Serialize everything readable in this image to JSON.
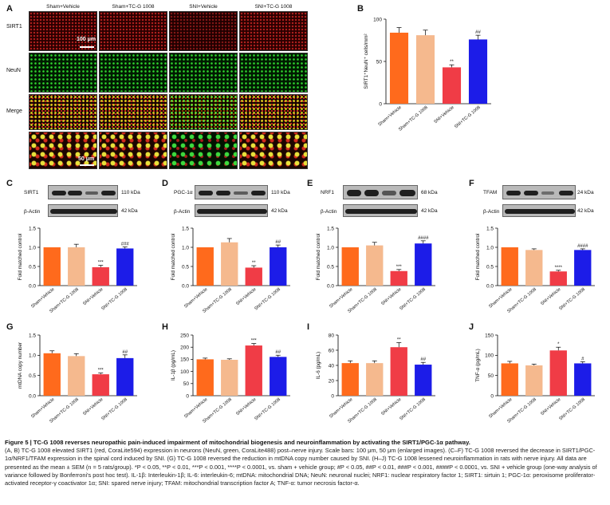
{
  "panel_letters": {
    "A": "A",
    "B": "B",
    "C": "C",
    "D": "D",
    "E": "E",
    "F": "F",
    "G": "G",
    "H": "H",
    "I": "I",
    "J": "J"
  },
  "panel_a": {
    "groups": [
      "Sham+Vehicle",
      "Sham+TC-G 1008",
      "SNI+Vehicle",
      "SNI+TC-G 1008"
    ],
    "rows": [
      "SIRT1",
      "NeuN",
      "Merge"
    ],
    "scale_top": "100 μm",
    "scale_bottom": "50 μm"
  },
  "groups_short": [
    "Sham+Vehicle",
    "Sham+TC-G 1008",
    "SNI+Vehicle",
    "SNI+TC-G 1008"
  ],
  "bar_colors": [
    "#ff6a1c",
    "#f5b98e",
    "#f03c46",
    "#1c1ce8"
  ],
  "blots": {
    "C": {
      "target": "SIRT1",
      "target_kda": "110 kDa",
      "ref": "β-Actin",
      "ref_kda": "42 kDa"
    },
    "D": {
      "target": "PGC-1α",
      "target_kda": "110 kDa",
      "ref": "β-Actin",
      "ref_kda": "42 kDa"
    },
    "E": {
      "target": "NRF1",
      "target_kda": "68 kDa",
      "ref": "β-Actin",
      "ref_kda": "42 kDa"
    },
    "F": {
      "target": "TFAM",
      "target_kda": "24 kDa",
      "ref": "β-Actin",
      "ref_kda": "42 kDa"
    }
  },
  "chart_data": [
    {
      "panel": "B",
      "type": "bar",
      "ylabel": "SIRT1⁺NeuN⁺ cells/mm²",
      "ylim": [
        0,
        100
      ],
      "yticks": [
        0,
        50,
        100
      ],
      "categories": [
        "Sham+Vehicle",
        "Sham+TC-G 1008",
        "SNI+Vehicle",
        "SNI+TC-G 1008"
      ],
      "values": [
        84,
        81,
        43,
        76
      ],
      "errors": [
        6,
        6,
        3,
        5
      ],
      "annotations": [
        "",
        "",
        "**",
        "##"
      ]
    },
    {
      "panel": "C",
      "type": "bar",
      "ylabel": "Fold matched control",
      "ylim": [
        0,
        1.5
      ],
      "yticks": [
        0.0,
        0.5,
        1.0,
        1.5
      ],
      "categories": [
        "Sham+Vehicle",
        "Sham+TC-G 1008",
        "SNI+Vehicle",
        "SNI+TC-G 1008"
      ],
      "values": [
        1.0,
        1.0,
        0.48,
        0.97
      ],
      "errors": [
        0,
        0.08,
        0.05,
        0.04
      ],
      "annotations": [
        "",
        "",
        "***",
        "###"
      ]
    },
    {
      "panel": "D",
      "type": "bar",
      "ylabel": "Fold matched control",
      "ylim": [
        0,
        1.5
      ],
      "yticks": [
        0.0,
        0.5,
        1.0,
        1.5
      ],
      "categories": [
        "Sham+Vehicle",
        "Sham+TC-G 1008",
        "SNI+Vehicle",
        "SNI+TC-G 1008"
      ],
      "values": [
        1.0,
        1.13,
        0.47,
        1.0
      ],
      "errors": [
        0,
        0.1,
        0.05,
        0.06
      ],
      "annotations": [
        "",
        "",
        "**",
        "##"
      ]
    },
    {
      "panel": "E",
      "type": "bar",
      "ylabel": "Fold matched control",
      "ylim": [
        0,
        1.5
      ],
      "yticks": [
        0.0,
        0.5,
        1.0,
        1.5
      ],
      "categories": [
        "Sham+Vehicle",
        "Sham+TC-G 1008",
        "SNI+Vehicle",
        "SNI+TC-G 1008"
      ],
      "values": [
        1.0,
        1.05,
        0.38,
        1.1
      ],
      "errors": [
        0,
        0.08,
        0.04,
        0.07
      ],
      "annotations": [
        "",
        "",
        "***",
        "####"
      ]
    },
    {
      "panel": "F",
      "type": "bar",
      "ylabel": "Fold matched control",
      "ylim": [
        0,
        1.5
      ],
      "yticks": [
        0.0,
        0.5,
        1.0,
        1.5
      ],
      "categories": [
        "Sham+Vehicle",
        "Sham+TC-G 1008",
        "SNI+Vehicle",
        "SNI+TC-G 1008"
      ],
      "values": [
        1.0,
        0.93,
        0.37,
        0.93
      ],
      "errors": [
        0,
        0.03,
        0.03,
        0.03
      ],
      "annotations": [
        "",
        "",
        "****",
        "####"
      ]
    },
    {
      "panel": "G",
      "type": "bar",
      "ylabel": "mtDNA copy number",
      "ylim": [
        0,
        1.5
      ],
      "yticks": [
        0.0,
        0.5,
        1.0,
        1.5
      ],
      "categories": [
        "Sham+Vehicle",
        "Sham+TC-G 1008",
        "SNI+Vehicle",
        "SNI+TC-G 1008"
      ],
      "values": [
        1.05,
        0.98,
        0.53,
        0.93
      ],
      "errors": [
        0.06,
        0.06,
        0.03,
        0.08
      ],
      "annotations": [
        "",
        "",
        "***",
        "##"
      ]
    },
    {
      "panel": "H",
      "type": "bar",
      "ylabel": "IL-1β (pg/mL)",
      "ylim": [
        0,
        250
      ],
      "yticks": [
        0,
        50,
        100,
        150,
        200,
        250
      ],
      "categories": [
        "Sham+Vehicle",
        "Sham+TC-G 1008",
        "SNI+Vehicle",
        "SNI+TC-G 1008"
      ],
      "values": [
        150,
        148,
        207,
        160
      ],
      "errors": [
        5,
        4,
        8,
        7
      ],
      "annotations": [
        "",
        "",
        "***",
        "##"
      ]
    },
    {
      "panel": "I",
      "type": "bar",
      "ylabel": "IL-6 (pg/mL)",
      "ylim": [
        0,
        80
      ],
      "yticks": [
        0,
        20,
        40,
        60,
        80
      ],
      "categories": [
        "Sham+Vehicle",
        "Sham+TC-G 1008",
        "SNI+Vehicle",
        "SNI+TC-G 1008"
      ],
      "values": [
        43,
        43,
        64,
        41
      ],
      "errors": [
        3,
        3,
        6,
        3
      ],
      "annotations": [
        "",
        "",
        "**",
        "##"
      ]
    },
    {
      "panel": "J",
      "type": "bar",
      "ylabel": "TNF-α (pg/mL)",
      "ylim": [
        0,
        150
      ],
      "yticks": [
        0,
        50,
        100,
        150
      ],
      "categories": [
        "Sham+Vehicle",
        "Sham+TC-G 1008",
        "SNI+Vehicle",
        "SNI+TC-G 1008"
      ],
      "values": [
        80,
        75,
        112,
        80
      ],
      "errors": [
        5,
        3,
        8,
        4
      ],
      "annotations": [
        "",
        "",
        "*",
        "#"
      ]
    }
  ],
  "caption": {
    "title": "Figure 5 | TC-G 1008 reverses neuropathic pain-induced impairment of mitochondrial biogenesis and neuroinflammation by activating the SIRT1/PGC-1α pathway.",
    "body": "(A, B) TC-G 1008 elevated SIRT1 (red, CoraLite594) expression in neurons (NeuN, green, CoraLite488) post–nerve injury. Scale bars: 100 μm, 50 μm (enlarged images). (C–F) TC-G 1008 reversed the decrease in SIRT1/PGC-1α/NRF1/TFAM expression in the spinal cord induced by SNI. (G) TC-G 1008 reversed the reduction in mtDNA copy number caused by SNI. (H–J) TC-G 1008 lessened neuroinflammation in rats with nerve injury. All data are presented as the mean ± SEM (n = 5 rats/group). *P < 0.05, **P < 0.01, ***P < 0.001, ****P < 0.0001, vs. sham + vehicle group; #P < 0.05, ##P < 0.01, ###P < 0.001, ####P < 0.0001, vs. SNI + vehicle group (one-way analysis of variance followed by Bonferroni's post hoc test). IL-1β: Interleukin-1β; IL-6: interleukin-6; mtDNA: mitochondrial DNA; NeuN: neuronal nuclei; NRF1: nuclear respiratory factor 1; SIRT1: sirtuin 1; PGC-1α: peroxisome proliferator-activated receptor-γ coactivator 1α; SNI: spared nerve injury; TFAM: mitochondrial transcription factor A; TNF-α: tumor necrosis factor-α."
  }
}
